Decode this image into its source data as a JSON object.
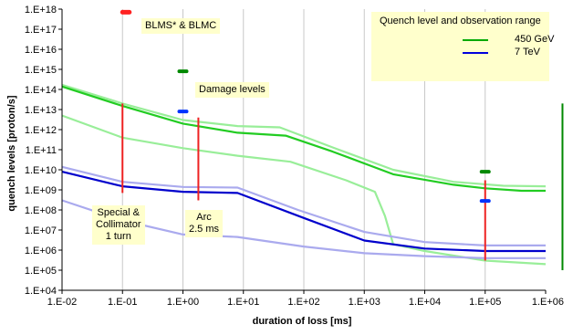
{
  "chart_data": {
    "type": "line",
    "xlabel": "duration of loss [ms]",
    "ylabel": "quench levels [proton/s]",
    "x_scale": "log",
    "y_scale": "log",
    "xlim": [
      0.01,
      1000000
    ],
    "ylim": [
      10000,
      1e+18
    ],
    "x_ticks": [
      "1.E-02",
      "1.E-01",
      "1.E+00",
      "1.E+01",
      "1.E+02",
      "1.E+03",
      "1.E+04",
      "1.E+05",
      "1.E+06"
    ],
    "y_ticks": [
      "1.E+04",
      "1.E+05",
      "1.E+06",
      "1.E+07",
      "1.E+08",
      "1.E+09",
      "1.E+10",
      "1.E+11",
      "1.E+12",
      "1.E+13",
      "1.E+14",
      "1.E+15",
      "1.E+16",
      "1.E+17",
      "1.E+18"
    ],
    "grid": "vertical",
    "legend": {
      "title": "Quench level and observation range",
      "entries": [
        {
          "label": "450 GeV",
          "color": "#00aa00"
        },
        {
          "label": "7 TeV",
          "color": "#0000dd"
        }
      ],
      "placement": "top-right"
    },
    "series": [
      {
        "name": "450 GeV",
        "color": "#22cc22",
        "width": 2.2,
        "x": [
          0.01,
          0.1,
          1,
          8,
          50,
          300,
          3000,
          30000,
          100000,
          400000,
          1000000
        ],
        "y": [
          140000000000000.0,
          15000000000000.0,
          2000000000000.0,
          700000000000.0,
          500000000000.0,
          80000000000.0,
          6000000000.0,
          1800000000.0,
          1200000000.0,
          900000000.0,
          900000000.0
        ]
      },
      {
        "name": "7 TeV",
        "color": "#0000cc",
        "width": 2.2,
        "x": [
          0.01,
          0.1,
          1,
          8,
          100,
          1000,
          10000,
          100000,
          1000000
        ],
        "y": [
          8000000000.0,
          1500000000.0,
          800000000.0,
          700000000.0,
          40000000.0,
          3000000.0,
          1200000.0,
          900000.0,
          900000.0
        ]
      },
      {
        "color": "#99ee99",
        "width": 2.2,
        "x": [
          0.01,
          0.1,
          1,
          8,
          40,
          300,
          3000,
          30000,
          200000,
          1000000
        ],
        "y": [
          170000000000000.0,
          20000000000000.0,
          3000000000000.0,
          1500000000000.0,
          1300000000000.0,
          130000000000.0,
          10000000000.0,
          2500000000.0,
          1600000000.0,
          1500000000.0
        ]
      },
      {
        "color": "#99ee99",
        "width": 2.2,
        "x": [
          0.01,
          0.1,
          1,
          8,
          60,
          500,
          1500,
          2200,
          3000,
          10000,
          100000,
          1000000
        ],
        "y": [
          5000000000000.0,
          400000000000.0,
          120000000000.0,
          50000000000.0,
          25000000000.0,
          3000000000.0,
          800000000.0,
          50000000.0,
          2000000.0,
          900000.0,
          300000.0,
          200000.0
        ]
      },
      {
        "color": "#aaaaee",
        "width": 2.2,
        "x": [
          0.01,
          0.1,
          1,
          8,
          80,
          1000,
          10000,
          100000,
          1000000
        ],
        "y": [
          14000000000.0,
          2500000000.0,
          1400000000.0,
          1300000000.0,
          100000000.0,
          8000000.0,
          2500000.0,
          1700000.0,
          1700000.0
        ]
      },
      {
        "color": "#aaaaee",
        "width": 2.2,
        "x": [
          0.01,
          0.1,
          1,
          8,
          100,
          1000,
          10000,
          100000,
          1000000
        ],
        "y": [
          300000000.0,
          30000000.0,
          6000000.0,
          4500000.0,
          1500000.0,
          700000.0,
          500000.0,
          400000.0,
          400000.0
        ]
      }
    ],
    "markers": [
      {
        "color": "#ff2222",
        "x": 0.1,
        "y": 7e+17,
        "x_end": 0.13
      },
      {
        "color": "#008800",
        "x": 1,
        "y": 800000000000000.0
      },
      {
        "color": "#0033ff",
        "x": 1,
        "y": 8000000000000.0
      },
      {
        "color": "#008800",
        "x": 100000,
        "y": 8000000000.0
      },
      {
        "color": "#0033ff",
        "x": 100000,
        "y": 280000000.0
      }
    ],
    "ranges": [
      {
        "color": "#ee2222",
        "x": 0.1,
        "y_min": 700000000.0,
        "y_max": 20000000000000.0
      },
      {
        "color": "#ee2222",
        "x": 1.8,
        "y_min": 300000000.0,
        "y_max": 4000000000000.0
      },
      {
        "color": "#ee2222",
        "x": 100000,
        "y_min": 300000.0,
        "y_max": 3000000000.0
      },
      {
        "color": "#008800",
        "x": 1900000,
        "y_min": 100000.0,
        "y_max": 20000000000000.0
      }
    ],
    "annotations": [
      {
        "text": "BLMS* & BLMC"
      },
      {
        "text": "Damage levels"
      },
      {
        "text": "Special &\nCollimator\n1 turn"
      },
      {
        "text": "Arc\n2.5 ms"
      }
    ]
  }
}
